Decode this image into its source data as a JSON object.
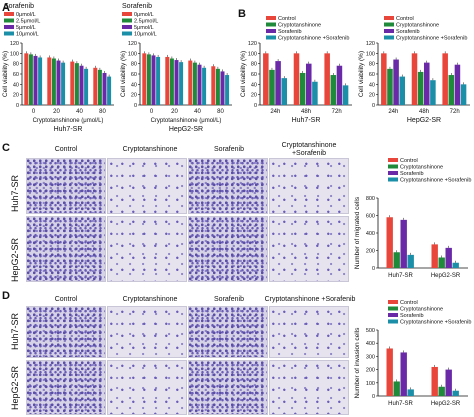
{
  "colors": {
    "Control": "#e8463b",
    "Cryptotanshinone": "#1f8a3a",
    "Sorafenib": "#6a2aa8",
    "Combo": "#1c8fa8"
  },
  "panels": {
    "A": "A",
    "B": "B",
    "C": "C",
    "D": "D"
  },
  "panel_C": {
    "col_labels": [
      "Control",
      "Cryptotanshinone",
      "Sorafenib",
      "Cryptotanshinone\n+Sorafenib"
    ],
    "row_labels": [
      "Huh7-SR",
      "HepG2-SR"
    ]
  },
  "panel_D": {
    "col_labels": [
      "Control",
      "Cryptotanshinone",
      "Sorafenib",
      "Cryptotanshinone +Sorafenib"
    ],
    "row_labels": [
      "Huh7-SR",
      "HepG2-SR"
    ]
  },
  "chart_data": [
    {
      "id": "A1",
      "type": "bar",
      "title": "Sorafenib",
      "xlabel": "Cryptotanshinone (μmol/L)",
      "ylabel": "Cell viability (%)",
      "ylim": [
        0,
        120
      ],
      "yticks": [
        0,
        20,
        40,
        60,
        80,
        100,
        120
      ],
      "categories": [
        "0",
        "20",
        "40",
        "80"
      ],
      "xaxis_label": "Huh7-SR",
      "series": [
        {
          "name": "0μmol/L",
          "color": "#e8463b",
          "values": [
            100,
            92,
            84,
            72
          ]
        },
        {
          "name": "2.5μmol/L",
          "color": "#1f8a3a",
          "values": [
            98,
            90,
            81,
            68
          ]
        },
        {
          "name": "5μmol/L",
          "color": "#6a2aa8",
          "values": [
            95,
            86,
            76,
            62
          ]
        },
        {
          "name": "10μmol/L",
          "color": "#1c8fa8",
          "values": [
            92,
            82,
            70,
            55
          ]
        }
      ]
    },
    {
      "id": "A2",
      "type": "bar",
      "title": "Sorafenib",
      "xlabel": "Cryptotanshinone (μmol/L)",
      "ylabel": "Cell viability (%)",
      "ylim": [
        0,
        120
      ],
      "yticks": [
        0,
        20,
        40,
        60,
        80,
        100,
        120
      ],
      "categories": [
        "0",
        "20",
        "40",
        "80"
      ],
      "xaxis_label": "HepG2-SR",
      "series": [
        {
          "name": "0μmol/L",
          "color": "#e8463b",
          "values": [
            100,
            93,
            86,
            75
          ]
        },
        {
          "name": "2.5μmol/L",
          "color": "#1f8a3a",
          "values": [
            98,
            90,
            82,
            70
          ]
        },
        {
          "name": "5μmol/L",
          "color": "#6a2aa8",
          "values": [
            96,
            87,
            78,
            65
          ]
        },
        {
          "name": "10μmol/L",
          "color": "#1c8fa8",
          "values": [
            93,
            83,
            72,
            58
          ]
        }
      ]
    },
    {
      "id": "B1",
      "type": "bar",
      "xlabel": "Huh7-SR",
      "ylabel": "Cell viability (%)",
      "ylim": [
        0,
        120
      ],
      "yticks": [
        0,
        20,
        40,
        60,
        80,
        100,
        120
      ],
      "categories": [
        "24h",
        "48h",
        "72h"
      ],
      "series": [
        {
          "name": "Control",
          "color": "#e8463b",
          "values": [
            100,
            100,
            100
          ]
        },
        {
          "name": "Cryptotanshinone",
          "color": "#1f8a3a",
          "values": [
            68,
            62,
            58
          ]
        },
        {
          "name": "Sorafenib",
          "color": "#6a2aa8",
          "values": [
            85,
            80,
            76
          ]
        },
        {
          "name": "Cryptotanshinone +Sorafenib",
          "color": "#1c8fa8",
          "values": [
            52,
            45,
            38
          ]
        }
      ]
    },
    {
      "id": "B2",
      "type": "bar",
      "xlabel": "HepG2-SR",
      "ylabel": "Cell viability (%)",
      "ylim": [
        0,
        120
      ],
      "yticks": [
        0,
        20,
        40,
        60,
        80,
        100,
        120
      ],
      "categories": [
        "24h",
        "48h",
        "72h"
      ],
      "series": [
        {
          "name": "Control",
          "color": "#e8463b",
          "values": [
            100,
            100,
            100
          ]
        },
        {
          "name": "Cryptotanshinone",
          "color": "#1f8a3a",
          "values": [
            70,
            64,
            58
          ]
        },
        {
          "name": "Sorafenib",
          "color": "#6a2aa8",
          "values": [
            88,
            82,
            78
          ]
        },
        {
          "name": "Cryptotanshinone +Sorafenib",
          "color": "#1c8fa8",
          "values": [
            55,
            48,
            40
          ]
        }
      ]
    },
    {
      "id": "C",
      "type": "bar",
      "ylabel": "Number of migrated cells",
      "ylim": [
        0,
        800
      ],
      "yticks": [
        0,
        200,
        400,
        600,
        800
      ],
      "categories": [
        "Huh7-SR",
        "HepG2-SR"
      ],
      "series": [
        {
          "name": "Control",
          "color": "#e8463b",
          "values": [
            580,
            270
          ]
        },
        {
          "name": "Cryptotanshinone",
          "color": "#1f8a3a",
          "values": [
            180,
            120
          ]
        },
        {
          "name": "Sorafenib",
          "color": "#6a2aa8",
          "values": [
            550,
            230
          ]
        },
        {
          "name": "Cryptotanshinone +Sorafenib",
          "color": "#1c8fa8",
          "values": [
            150,
            60
          ]
        }
      ]
    },
    {
      "id": "D",
      "type": "bar",
      "ylabel": "Number of invasion cells",
      "ylim": [
        0,
        500
      ],
      "yticks": [
        0,
        100,
        200,
        300,
        400,
        500
      ],
      "categories": [
        "Huh7-SR",
        "HepG2-SR"
      ],
      "series": [
        {
          "name": "Control",
          "color": "#e8463b",
          "values": [
            360,
            220
          ]
        },
        {
          "name": "Cryptotanshinone",
          "color": "#1f8a3a",
          "values": [
            110,
            70
          ]
        },
        {
          "name": "Sorafenib",
          "color": "#6a2aa8",
          "values": [
            330,
            200
          ]
        },
        {
          "name": "Cryptotanshinone +Sorafenib",
          "color": "#1c8fa8",
          "values": [
            50,
            40
          ]
        }
      ]
    }
  ]
}
